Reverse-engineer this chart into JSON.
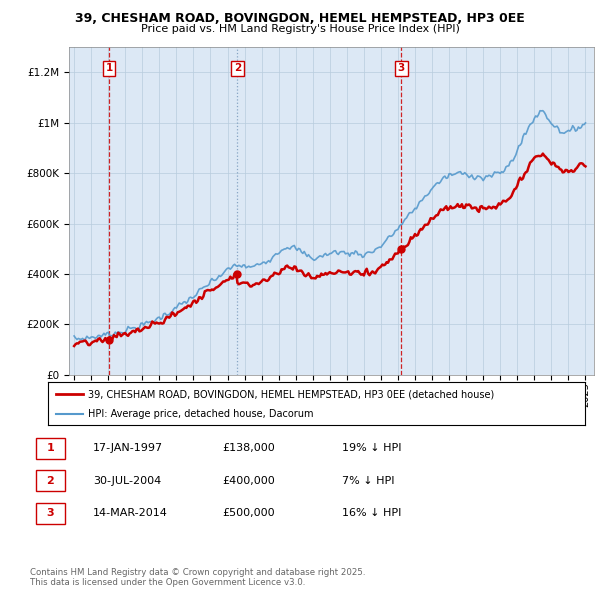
{
  "title": "39, CHESHAM ROAD, BOVINGDON, HEMEL HEMPSTEAD, HP3 0EE",
  "subtitle": "Price paid vs. HM Land Registry's House Price Index (HPI)",
  "ylim": [
    0,
    1300000
  ],
  "yticks": [
    0,
    200000,
    400000,
    600000,
    800000,
    1000000,
    1200000
  ],
  "ytick_labels": [
    "£0",
    "£200K",
    "£400K",
    "£600K",
    "£800K",
    "£1M",
    "£1.2M"
  ],
  "sale_color": "#cc0000",
  "hpi_color": "#5599cc",
  "vline_colors": [
    "#cc0000",
    "#7799bb",
    "#cc0000"
  ],
  "vline_styles": [
    "--",
    ":",
    "--"
  ],
  "background_color": "#dce8f5",
  "legend_label_sale": "39, CHESHAM ROAD, BOVINGDON, HEMEL HEMPSTEAD, HP3 0EE (detached house)",
  "legend_label_hpi": "HPI: Average price, detached house, Dacorum",
  "sale_dates": [
    1997.05,
    2004.58,
    2014.2
  ],
  "sale_prices": [
    138000,
    400000,
    500000
  ],
  "sale_labels": [
    "1",
    "2",
    "3"
  ],
  "table_data": [
    [
      "1",
      "17-JAN-1997",
      "£138,000",
      "19% ↓ HPI"
    ],
    [
      "2",
      "30-JUL-2004",
      "£400,000",
      "7% ↓ HPI"
    ],
    [
      "3",
      "14-MAR-2014",
      "£500,000",
      "16% ↓ HPI"
    ]
  ],
  "footer": "Contains HM Land Registry data © Crown copyright and database right 2025.\nThis data is licensed under the Open Government Licence v3.0.",
  "xticks": [
    1995,
    1996,
    1997,
    1998,
    1999,
    2000,
    2001,
    2002,
    2003,
    2004,
    2005,
    2006,
    2007,
    2008,
    2009,
    2010,
    2011,
    2012,
    2013,
    2014,
    2015,
    2016,
    2017,
    2018,
    2019,
    2020,
    2021,
    2022,
    2023,
    2024,
    2025
  ],
  "grid_color": "#b8ccdd"
}
